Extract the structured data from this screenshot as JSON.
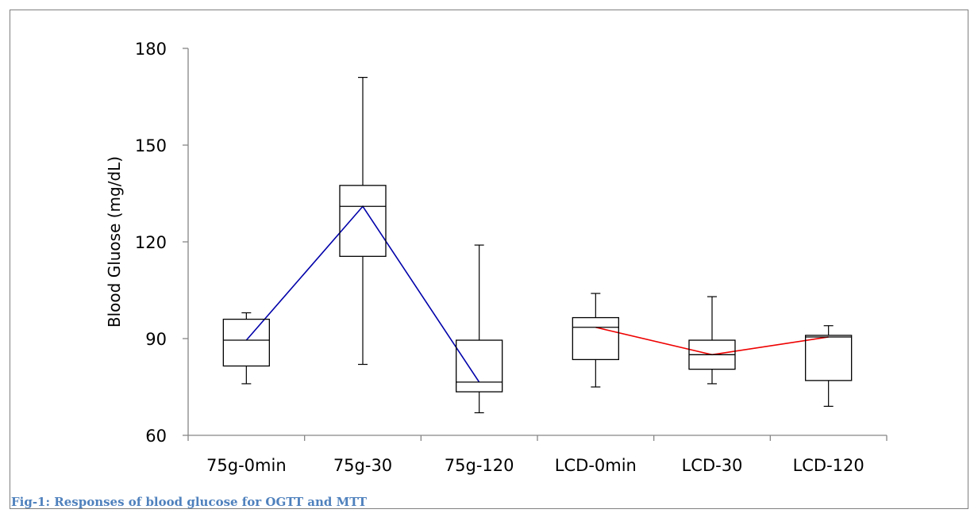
{
  "caption": "Fig-1: Responses of blood glucose for OGTT and MTT",
  "chart_data": {
    "type": "box",
    "ylabel": "Blood Gluose (mg/dL)",
    "ylim": [
      60,
      180
    ],
    "yticks": [
      60,
      90,
      120,
      150,
      180
    ],
    "categories": [
      "75g-0min",
      "75g-30",
      "75g-120",
      "LCD-0min",
      "LCD-30",
      "LCD-120"
    ],
    "boxes": [
      {
        "category": "75g-0min",
        "min": 76,
        "q1": 81.5,
        "median": 89.5,
        "q3": 96,
        "max": 98
      },
      {
        "category": "75g-30",
        "min": 82,
        "q1": 115.5,
        "median": 131,
        "q3": 137.5,
        "max": 171
      },
      {
        "category": "75g-120",
        "min": 67,
        "q1": 73.5,
        "median": 76.5,
        "q3": 89.5,
        "max": 119
      },
      {
        "category": "LCD-0min",
        "min": 75,
        "q1": 83.5,
        "median": 93.5,
        "q3": 96.5,
        "max": 104
      },
      {
        "category": "LCD-30",
        "min": 76,
        "q1": 80.5,
        "median": 85,
        "q3": 89.5,
        "max": 103
      },
      {
        "category": "LCD-120",
        "min": 69,
        "q1": 77,
        "median": 90.5,
        "q3": 91,
        "max": 94
      }
    ],
    "median_lines": [
      {
        "color": "#0000aa",
        "categories": [
          "75g-0min",
          "75g-30",
          "75g-120"
        ]
      },
      {
        "color": "#ee0000",
        "categories": [
          "LCD-0min",
          "LCD-30",
          "LCD-120"
        ]
      }
    ],
    "grid": false,
    "legend": "none"
  }
}
